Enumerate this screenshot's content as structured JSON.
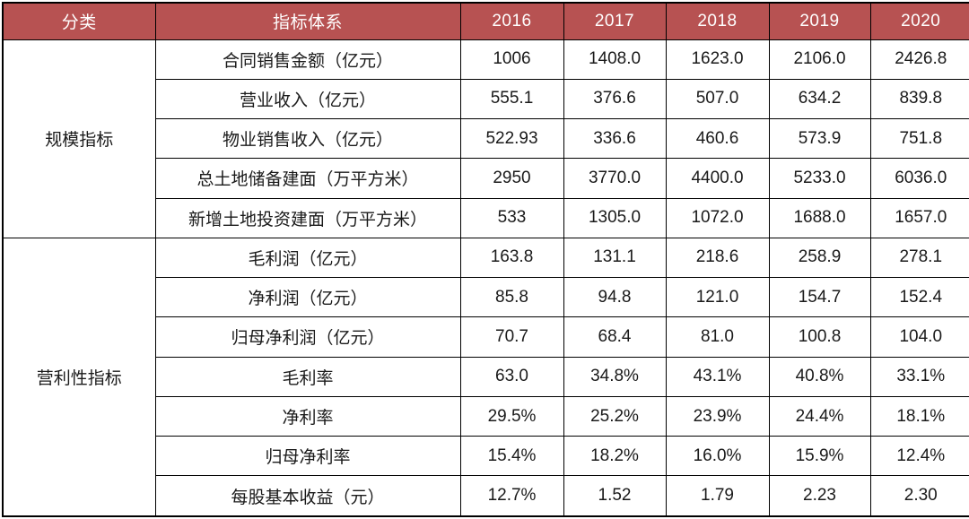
{
  "chart_data": {
    "type": "table",
    "columns": [
      "分类",
      "指标体系",
      "2016",
      "2017",
      "2018",
      "2019",
      "2020"
    ],
    "rows": [
      [
        "规模指标",
        "合同销售金额（亿元）",
        "1006",
        "1408.0",
        "1623.0",
        "2106.0",
        "2426.8"
      ],
      [
        "规模指标",
        "营业收入（亿元）",
        "555.1",
        "376.6",
        "507.0",
        "634.2",
        "839.8"
      ],
      [
        "规模指标",
        "物业销售收入（亿元）",
        "522.93",
        "336.6",
        "460.6",
        "573.9",
        "751.8"
      ],
      [
        "规模指标",
        "总土地储备建面（万平方米）",
        "2950",
        "3770.0",
        "4400.0",
        "5233.0",
        "6036.0"
      ],
      [
        "规模指标",
        "新增土地投资建面（万平方米）",
        "533",
        "1305.0",
        "1072.0",
        "1688.0",
        "1657.0"
      ],
      [
        "营利性指标",
        "毛利润（亿元）",
        "163.8",
        "131.1",
        "218.6",
        "258.9",
        "278.1"
      ],
      [
        "营利性指标",
        "净利润（亿元）",
        "85.8",
        "94.8",
        "121.0",
        "154.7",
        "152.4"
      ],
      [
        "营利性指标",
        "归母净利润（亿元）",
        "70.7",
        "68.4",
        "81.0",
        "100.8",
        "104.0"
      ],
      [
        "营利性指标",
        "毛利率",
        "63.0",
        "34.8%",
        "43.1%",
        "40.8%",
        "33.1%"
      ],
      [
        "营利性指标",
        "净利率",
        "29.5%",
        "25.2%",
        "23.9%",
        "24.4%",
        "18.1%"
      ],
      [
        "营利性指标",
        "归母净利率",
        "15.4%",
        "18.2%",
        "16.0%",
        "15.9%",
        "12.4%"
      ],
      [
        "营利性指标",
        "每股基本收益（元）",
        "12.7%",
        "1.52",
        "1.79",
        "2.23",
        "2.30"
      ]
    ]
  },
  "table": {
    "header": {
      "category_label": "分类",
      "indicator_label": "指标体系",
      "years": [
        "2016",
        "2017",
        "2018",
        "2019",
        "2020"
      ]
    },
    "groups": [
      {
        "name": "规模指标",
        "rows": [
          {
            "indicator": "合同销售金额（亿元）",
            "values": [
              "1006",
              "1408.0",
              "1623.0",
              "2106.0",
              "2426.8"
            ]
          },
          {
            "indicator": "营业收入（亿元）",
            "values": [
              "555.1",
              "376.6",
              "507.0",
              "634.2",
              "839.8"
            ]
          },
          {
            "indicator": "物业销售收入（亿元）",
            "values": [
              "522.93",
              "336.6",
              "460.6",
              "573.9",
              "751.8"
            ]
          },
          {
            "indicator": "总土地储备建面（万平方米）",
            "values": [
              "2950",
              "3770.0",
              "4400.0",
              "5233.0",
              "6036.0"
            ]
          },
          {
            "indicator": "新增土地投资建面（万平方米）",
            "values": [
              "533",
              "1305.0",
              "1072.0",
              "1688.0",
              "1657.0"
            ]
          }
        ]
      },
      {
        "name": "营利性指标",
        "rows": [
          {
            "indicator": "毛利润（亿元）",
            "values": [
              "163.8",
              "131.1",
              "218.6",
              "258.9",
              "278.1"
            ]
          },
          {
            "indicator": "净利润（亿元）",
            "values": [
              "85.8",
              "94.8",
              "121.0",
              "154.7",
              "152.4"
            ]
          },
          {
            "indicator": "归母净利润（亿元）",
            "values": [
              "70.7",
              "68.4",
              "81.0",
              "100.8",
              "104.0"
            ]
          },
          {
            "indicator": "毛利率",
            "values": [
              "63.0",
              "34.8%",
              "43.1%",
              "40.8%",
              "33.1%"
            ]
          },
          {
            "indicator": "净利率",
            "values": [
              "29.5%",
              "25.2%",
              "23.9%",
              "24.4%",
              "18.1%"
            ]
          },
          {
            "indicator": "归母净利率",
            "values": [
              "15.4%",
              "18.2%",
              "16.0%",
              "15.9%",
              "12.4%"
            ]
          },
          {
            "indicator": "每股基本收益（元）",
            "values": [
              "12.7%",
              "1.52",
              "1.79",
              "2.23",
              "2.30"
            ]
          }
        ]
      }
    ],
    "colors": {
      "header_bg": "#B75252",
      "header_text": "#FFFFFF",
      "body_text": "#1A1A1A",
      "border": "#000000"
    }
  }
}
